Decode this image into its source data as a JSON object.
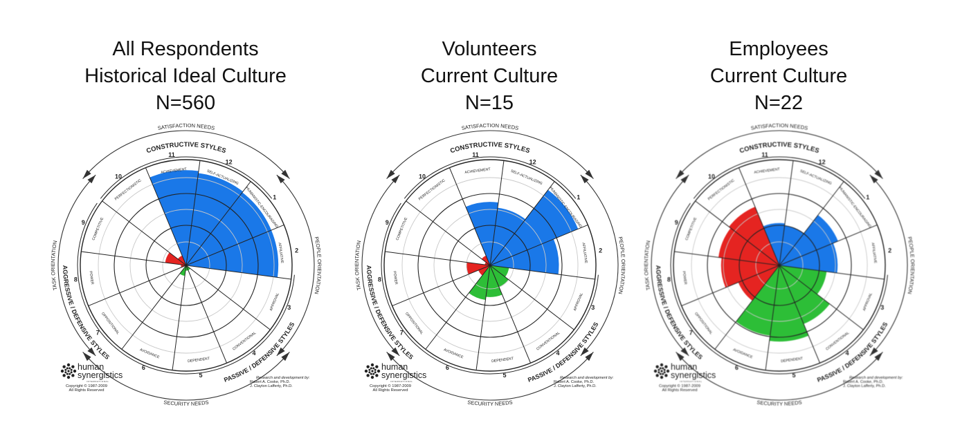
{
  "panels": [
    {
      "title_lines": [
        "All Respondents",
        "Historical Ideal Culture",
        "N=560"
      ],
      "chart_data": {
        "type": "circumplex",
        "segments": [
          {
            "number": "1",
            "style": "HUMANISTIC-ENCOURAGING",
            "value": 0.87
          },
          {
            "number": "2",
            "style": "AFFILIATIVE",
            "value": 0.87
          },
          {
            "number": "3",
            "style": "APPROVAL",
            "value": 0.0
          },
          {
            "number": "4",
            "style": "CONVENTIONAL",
            "value": 0.05
          },
          {
            "number": "5",
            "style": "DEPENDENT",
            "value": 0.05
          },
          {
            "number": "6",
            "style": "AVOIDANCE",
            "value": 0.1
          },
          {
            "number": "7",
            "style": "OPPOSITIONAL",
            "value": 0.0
          },
          {
            "number": "8",
            "style": "POWER",
            "value": 0.05
          },
          {
            "number": "9",
            "style": "COMPETITIVE",
            "value": 0.2
          },
          {
            "number": "10",
            "style": "PERFECTIONISTIC",
            "value": 0.1
          },
          {
            "number": "11",
            "style": "ACHIEVEMENT",
            "value": 0.9
          },
          {
            "number": "12",
            "style": "SELF-ACTUALIZING",
            "value": 0.88
          }
        ]
      }
    },
    {
      "title_lines": [
        "Volunteers",
        "Current Culture",
        "N=15"
      ],
      "chart_data": {
        "type": "circumplex",
        "segments": [
          {
            "number": "1",
            "style": "HUMANISTIC-ENCOURAGING",
            "value": 0.9
          },
          {
            "number": "2",
            "style": "AFFILIATIVE",
            "value": 0.65
          },
          {
            "number": "3",
            "style": "APPROVAL",
            "value": 0.18
          },
          {
            "number": "4",
            "style": "CONVENTIONAL",
            "value": 0.22
          },
          {
            "number": "5",
            "style": "DEPENDENT",
            "value": 0.3
          },
          {
            "number": "6",
            "style": "AVOIDANCE",
            "value": 0.33
          },
          {
            "number": "7",
            "style": "OPPOSITIONAL",
            "value": 0.12
          },
          {
            "number": "8",
            "style": "POWER",
            "value": 0.22
          },
          {
            "number": "9",
            "style": "COMPETITIVE",
            "value": 0.05
          },
          {
            "number": "10",
            "style": "PERFECTIONISTIC",
            "value": 0.1
          },
          {
            "number": "11",
            "style": "ACHIEVEMENT",
            "value": 0.6
          },
          {
            "number": "12",
            "style": "SELF-ACTUALIZING",
            "value": 0.55
          }
        ]
      }
    },
    {
      "title_lines": [
        "Employees",
        "Current Culture",
        "N=22"
      ],
      "chart_data": {
        "type": "circumplex",
        "segments": [
          {
            "number": "1",
            "style": "HUMANISTIC-ENCOURAGING",
            "value": 0.6
          },
          {
            "number": "2",
            "style": "AFFILIATIVE",
            "value": 0.55
          },
          {
            "number": "3",
            "style": "APPROVAL",
            "value": 0.45
          },
          {
            "number": "4",
            "style": "CONVENTIONAL",
            "value": 0.6
          },
          {
            "number": "5",
            "style": "DEPENDENT",
            "value": 0.72
          },
          {
            "number": "6",
            "style": "AVOIDANCE",
            "value": 0.67
          },
          {
            "number": "7",
            "style": "OPPOSITIONAL",
            "value": 0.42
          },
          {
            "number": "8",
            "style": "POWER",
            "value": 0.55
          },
          {
            "number": "9",
            "style": "COMPETITIVE",
            "value": 0.58
          },
          {
            "number": "10",
            "style": "PERFECTIONISTIC",
            "value": 0.6
          },
          {
            "number": "11",
            "style": "ACHIEVEMENT",
            "value": 0.4
          },
          {
            "number": "12",
            "style": "SELF-ACTUALIZING",
            "value": 0.38
          }
        ]
      }
    }
  ],
  "cluster_labels": {
    "constructive": "CONSTRUCTIVE STYLES",
    "passive": "PASSIVE / DEFENSIVE STYLES",
    "aggressive": "AGGRESSIVE / DEFENSIVE STYLES"
  },
  "orientation_labels": {
    "satisfaction": "SATISFACTION NEEDS",
    "security": "SECURITY NEEDS",
    "task": "TASK ORIENTATION",
    "people": "PEOPLE ORIENTATION"
  },
  "branding": {
    "logo_line1": "human",
    "logo_line2": "synergistics",
    "logo_sub": "INTERNATIONAL",
    "copyright": "Copyright © 1987-2009",
    "rights": "All Rights Reserved",
    "research": "Research and development by:",
    "author1": "Robert A. Cooke, Ph.D.",
    "author2": "J. Clayton Lafferty, Ph.D."
  },
  "colors": {
    "constructive": "#1A78E8",
    "passive": "#2DBE37",
    "aggressive": "#E52421",
    "grid": "#222222",
    "inner_rings": "#c8c8c8"
  }
}
